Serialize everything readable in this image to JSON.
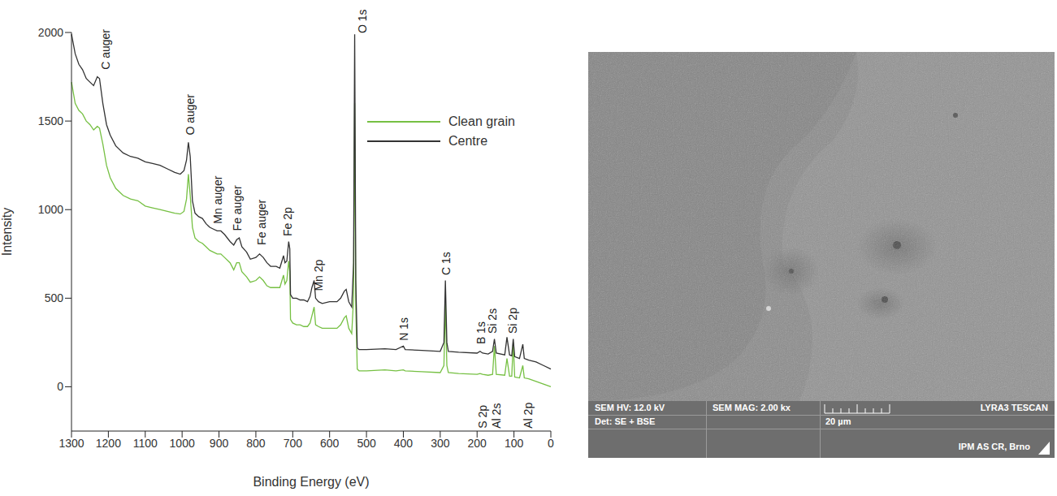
{
  "chart_data": {
    "type": "line",
    "x_label": "Binding Energy (eV)",
    "y_label": "Intensity",
    "xlim": [
      1300,
      0
    ],
    "xticks": [
      1300,
      1200,
      1100,
      1000,
      900,
      800,
      700,
      600,
      500,
      400,
      300,
      200,
      100,
      0
    ],
    "ylim": [
      -250,
      2000
    ],
    "yticks": [
      0,
      500,
      1000,
      1500,
      2000
    ],
    "grid": false,
    "legend": "upper right",
    "x": [
      1300,
      1290,
      1280,
      1270,
      1260,
      1250,
      1240,
      1230,
      1224,
      1215,
      1205,
      1195,
      1180,
      1160,
      1140,
      1120,
      1100,
      1080,
      1060,
      1040,
      1020,
      1005,
      995,
      988,
      983,
      978,
      972,
      965,
      955,
      945,
      935,
      925,
      915,
      905,
      895,
      885,
      870,
      860,
      852,
      845,
      838,
      825,
      815,
      800,
      790,
      780,
      770,
      760,
      745,
      735,
      725,
      721,
      716,
      711,
      708,
      706,
      700,
      690,
      680,
      670,
      660,
      653,
      648,
      642,
      638,
      630,
      620,
      600,
      580,
      570,
      560,
      555,
      548,
      540,
      535,
      532,
      529,
      525,
      520,
      500,
      450,
      420,
      400,
      395,
      350,
      300,
      290,
      286,
      282,
      278,
      250,
      200,
      192,
      185,
      170,
      158,
      153,
      148,
      125,
      119,
      112,
      106,
      102,
      98,
      85,
      76,
      72,
      60,
      40,
      20,
      0
    ],
    "series": [
      {
        "name": "Clean grain",
        "color": "#76c043",
        "values": [
          1720,
          1600,
          1560,
          1540,
          1500,
          1480,
          1450,
          1470,
          1460,
          1370,
          1250,
          1180,
          1120,
          1080,
          1060,
          1050,
          1020,
          1010,
          1000,
          990,
          980,
          975,
          990,
          1060,
          1200,
          1080,
          900,
          840,
          820,
          810,
          790,
          770,
          760,
          750,
          750,
          730,
          700,
          660,
          700,
          700,
          650,
          620,
          590,
          600,
          620,
          600,
          570,
          560,
          560,
          560,
          630,
          580,
          600,
          710,
          650,
          380,
          360,
          350,
          350,
          340,
          340,
          360,
          400,
          450,
          350,
          340,
          330,
          330,
          330,
          350,
          390,
          400,
          330,
          300,
          500,
          1600,
          450,
          100,
          90,
          90,
          95,
          90,
          95,
          90,
          85,
          80,
          120,
          470,
          120,
          80,
          75,
          70,
          75,
          70,
          65,
          70,
          230,
          70,
          65,
          160,
          60,
          60,
          250,
          55,
          50,
          120,
          50,
          45,
          30,
          15,
          0
        ]
      },
      {
        "name": "Centre",
        "color": "#333333",
        "values": [
          1990,
          1880,
          1820,
          1790,
          1740,
          1720,
          1700,
          1750,
          1740,
          1600,
          1480,
          1420,
          1360,
          1320,
          1300,
          1290,
          1270,
          1260,
          1250,
          1230,
          1210,
          1200,
          1220,
          1280,
          1380,
          1300,
          1050,
          980,
          960,
          950,
          920,
          900,
          890,
          880,
          880,
          860,
          820,
          800,
          830,
          840,
          790,
          760,
          720,
          730,
          750,
          730,
          700,
          680,
          680,
          670,
          740,
          700,
          710,
          820,
          780,
          520,
          500,
          500,
          490,
          490,
          480,
          510,
          560,
          600,
          500,
          480,
          470,
          480,
          480,
          500,
          540,
          550,
          480,
          450,
          700,
          1990,
          600,
          220,
          210,
          210,
          215,
          210,
          230,
          210,
          205,
          200,
          250,
          600,
          250,
          200,
          195,
          190,
          200,
          190,
          185,
          200,
          270,
          190,
          180,
          280,
          180,
          175,
          270,
          170,
          160,
          240,
          160,
          150,
          140,
          120,
          100
        ]
      }
    ],
    "annotations": [
      {
        "text": "C auger",
        "x": 1208,
        "y": 1790
      },
      {
        "text": "O auger",
        "x": 978,
        "y": 1420
      },
      {
        "text": "Mn auger",
        "x": 904,
        "y": 920
      },
      {
        "text": "Fe auger",
        "x": 851,
        "y": 880
      },
      {
        "text": "Fe auger",
        "x": 785,
        "y": 800
      },
      {
        "text": "Fe 2p",
        "x": 713,
        "y": 850
      },
      {
        "text": "Mn 2p",
        "x": 630,
        "y": 540
      },
      {
        "text": "O 1s",
        "x": 512,
        "y": 1995
      },
      {
        "text": "N 1s",
        "x": 398,
        "y": 260
      },
      {
        "text": "C 1s",
        "x": 285,
        "y": 630
      },
      {
        "text": "B 1s",
        "x": 190,
        "y": 240
      },
      {
        "text": "Si 2s",
        "x": 158,
        "y": 300
      },
      {
        "text": "Si 2p",
        "x": 103,
        "y": 300
      },
      {
        "text": "S 2p",
        "x": 185,
        "y": -235
      },
      {
        "text": "Al 2s",
        "x": 148,
        "y": -235
      },
      {
        "text": "Al 2p",
        "x": 62,
        "y": -235
      }
    ]
  },
  "image": {
    "hv": "SEM HV: 12.0 kV",
    "mag": "SEM MAG: 2.00 kx",
    "brand": "LYRA3 TESCAN",
    "detector": "Det: SE + BSE",
    "scale": "20 µm",
    "lab": "IPM AS CR, Brno"
  }
}
